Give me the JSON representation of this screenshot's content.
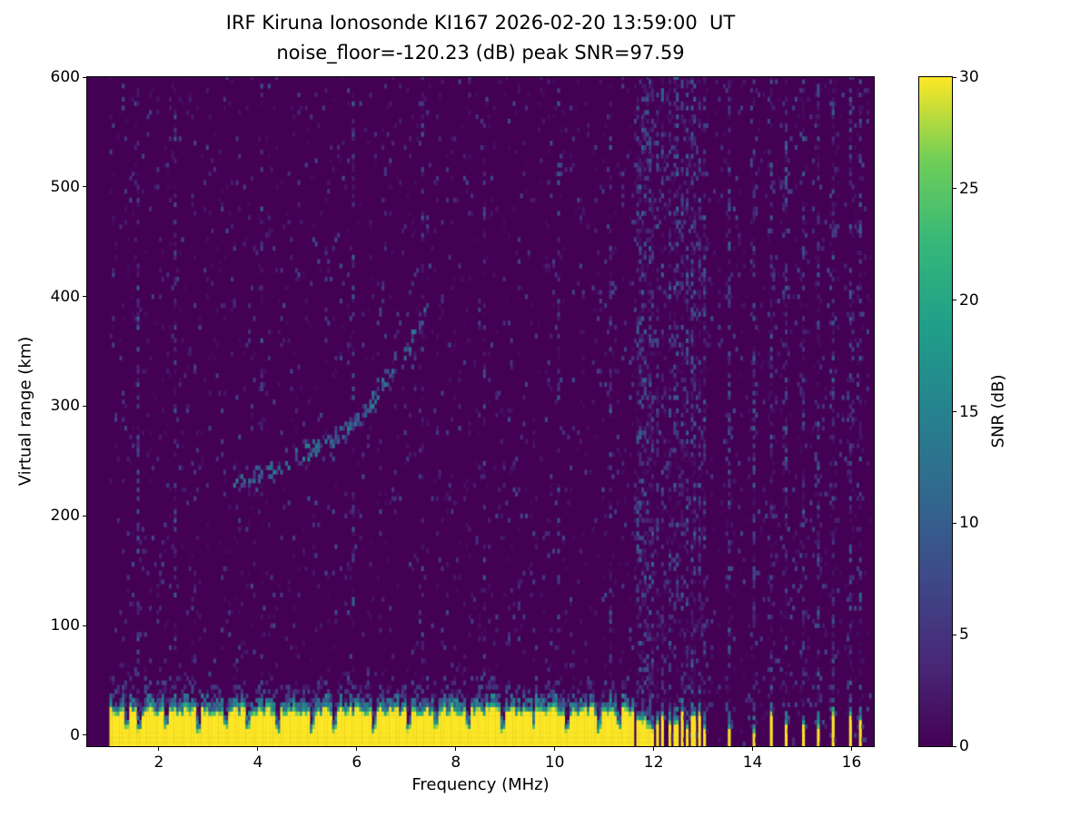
{
  "chart_data": {
    "type": "heatmap",
    "title": "IRF Kiruna Ionosonde KI167 2026-02-20 13:59:00  UT",
    "subtitle": "noise_floor=-120.23 (dB) peak SNR=97.59",
    "xlabel": "Frequency (MHz)",
    "ylabel": "Virtual range (km)",
    "colorbar_label": "SNR (dB)",
    "colormap": "viridis",
    "grid": false,
    "legend": "none",
    "xlim": [
      0.55,
      16.45
    ],
    "ylim": [
      -10,
      600
    ],
    "x_ticks": [
      2,
      4,
      6,
      8,
      10,
      12,
      14,
      16
    ],
    "y_ticks": [
      0,
      100,
      200,
      300,
      400,
      500,
      600
    ],
    "colorbar_ticks": [
      0,
      5,
      10,
      15,
      20,
      25,
      30
    ],
    "colorbar_range": [
      0,
      30
    ],
    "noise_floor_db": -120.23,
    "peak_snr_db": 97.59,
    "freq_range_mhz": [
      1.0,
      16.4
    ],
    "ground_clutter": {
      "freq_start": 1.0,
      "freq_end": 11.6,
      "typical_height_km": 27,
      "fringe_top_km": 45,
      "notch_freqs_mhz": [
        1.35,
        1.6,
        2.15,
        2.75,
        3.3,
        3.75,
        4.35,
        5.05,
        5.5,
        6.3,
        7.0,
        7.55,
        8.2,
        8.9,
        9.55,
        10.25,
        10.9,
        11.3
      ]
    },
    "rfi_stripes_mhz": [
      11.65,
      11.72,
      11.8,
      11.88,
      11.95,
      12.05,
      12.15,
      12.3,
      12.42,
      12.55,
      12.65,
      12.78,
      12.9,
      13.0,
      13.5,
      14.0,
      14.35,
      14.65,
      15.0,
      15.3,
      15.6,
      15.95,
      16.15
    ],
    "echo_trace": {
      "points_mhz_km": [
        [
          3.4,
          228
        ],
        [
          3.8,
          233
        ],
        [
          4.2,
          240
        ],
        [
          4.6,
          248
        ],
        [
          5.0,
          257
        ],
        [
          5.4,
          266
        ],
        [
          5.8,
          278
        ],
        [
          6.1,
          292
        ],
        [
          6.4,
          310
        ],
        [
          6.7,
          330
        ],
        [
          7.0,
          352
        ],
        [
          7.2,
          368
        ],
        [
          7.35,
          382
        ]
      ]
    },
    "noisy_columns_mhz": [
      1.55,
      2.3,
      4.05,
      5.9,
      7.3,
      8.55,
      10.05,
      11.1
    ],
    "colormap_stops": [
      [
        0.0,
        "#440154"
      ],
      [
        0.125,
        "#482878"
      ],
      [
        0.25,
        "#3e4989"
      ],
      [
        0.375,
        "#31688e"
      ],
      [
        0.5,
        "#26828e"
      ],
      [
        0.625,
        "#1f9e89"
      ],
      [
        0.75,
        "#35b779"
      ],
      [
        0.875,
        "#6ece58"
      ],
      [
        1.0,
        "#fde725"
      ]
    ],
    "colors": {
      "background_min": "#440154",
      "peak": "#fde725",
      "axes": "#000000",
      "figure_background": "#ffffff"
    }
  }
}
